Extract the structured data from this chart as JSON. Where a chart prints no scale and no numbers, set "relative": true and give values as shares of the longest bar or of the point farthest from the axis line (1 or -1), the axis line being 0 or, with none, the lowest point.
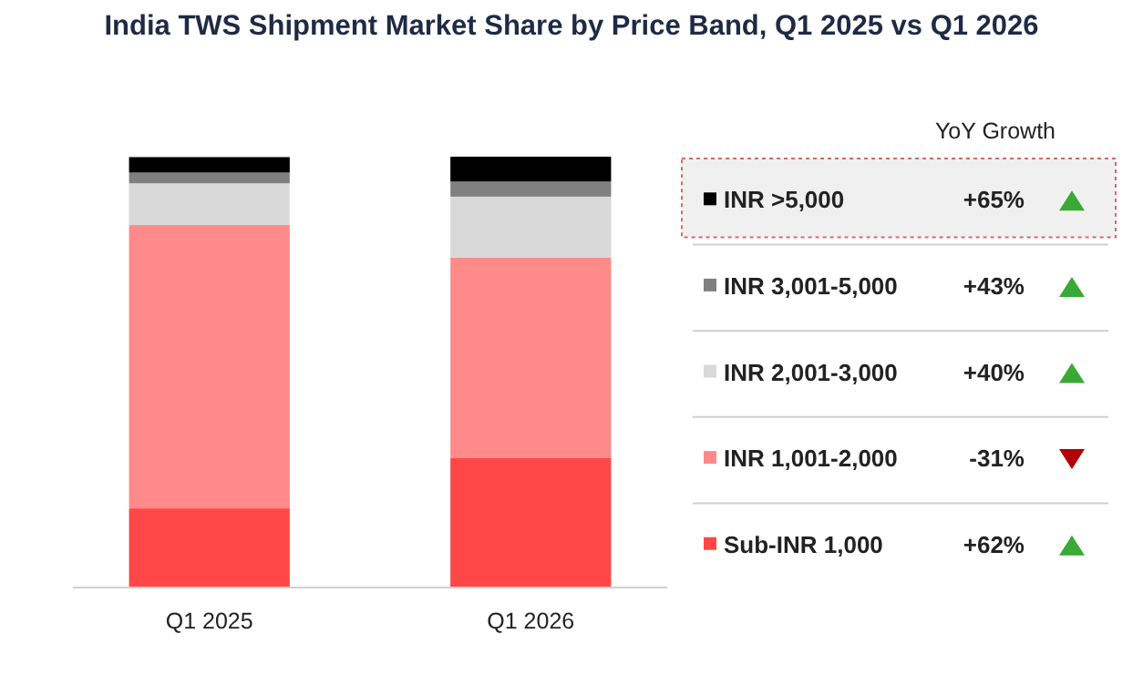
{
  "chart_data": {
    "type": "bar",
    "title": "India TWS Shipment Market Share by Price Band, Q1 2025 vs Q1 2026",
    "categories": [
      "Q1 2025",
      "Q1 2026"
    ],
    "stacked": true,
    "relative": true,
    "legend": "right",
    "series": [
      {
        "name": "Sub-INR 1,000",
        "color": "#ff4747",
        "values": [
          0.182,
          0.299
        ]
      },
      {
        "name": "INR 1,001-2,000",
        "color": "#ff8a8a",
        "values": [
          0.659,
          0.466
        ]
      },
      {
        "name": "INR 2,001-3,000",
        "color": "#d9d9d9",
        "values": [
          0.097,
          0.142
        ]
      },
      {
        "name": "INR 3,001-5,000",
        "color": "#808080",
        "values": [
          0.025,
          0.035
        ]
      },
      {
        "name": "INR >5,000",
        "color": "#000000",
        "values": [
          0.036,
          0.058
        ]
      }
    ],
    "annotations": [
      "YoY Growth",
      "+65%",
      "+43%",
      "+40%",
      "-31%",
      "+62%"
    ]
  }
}
